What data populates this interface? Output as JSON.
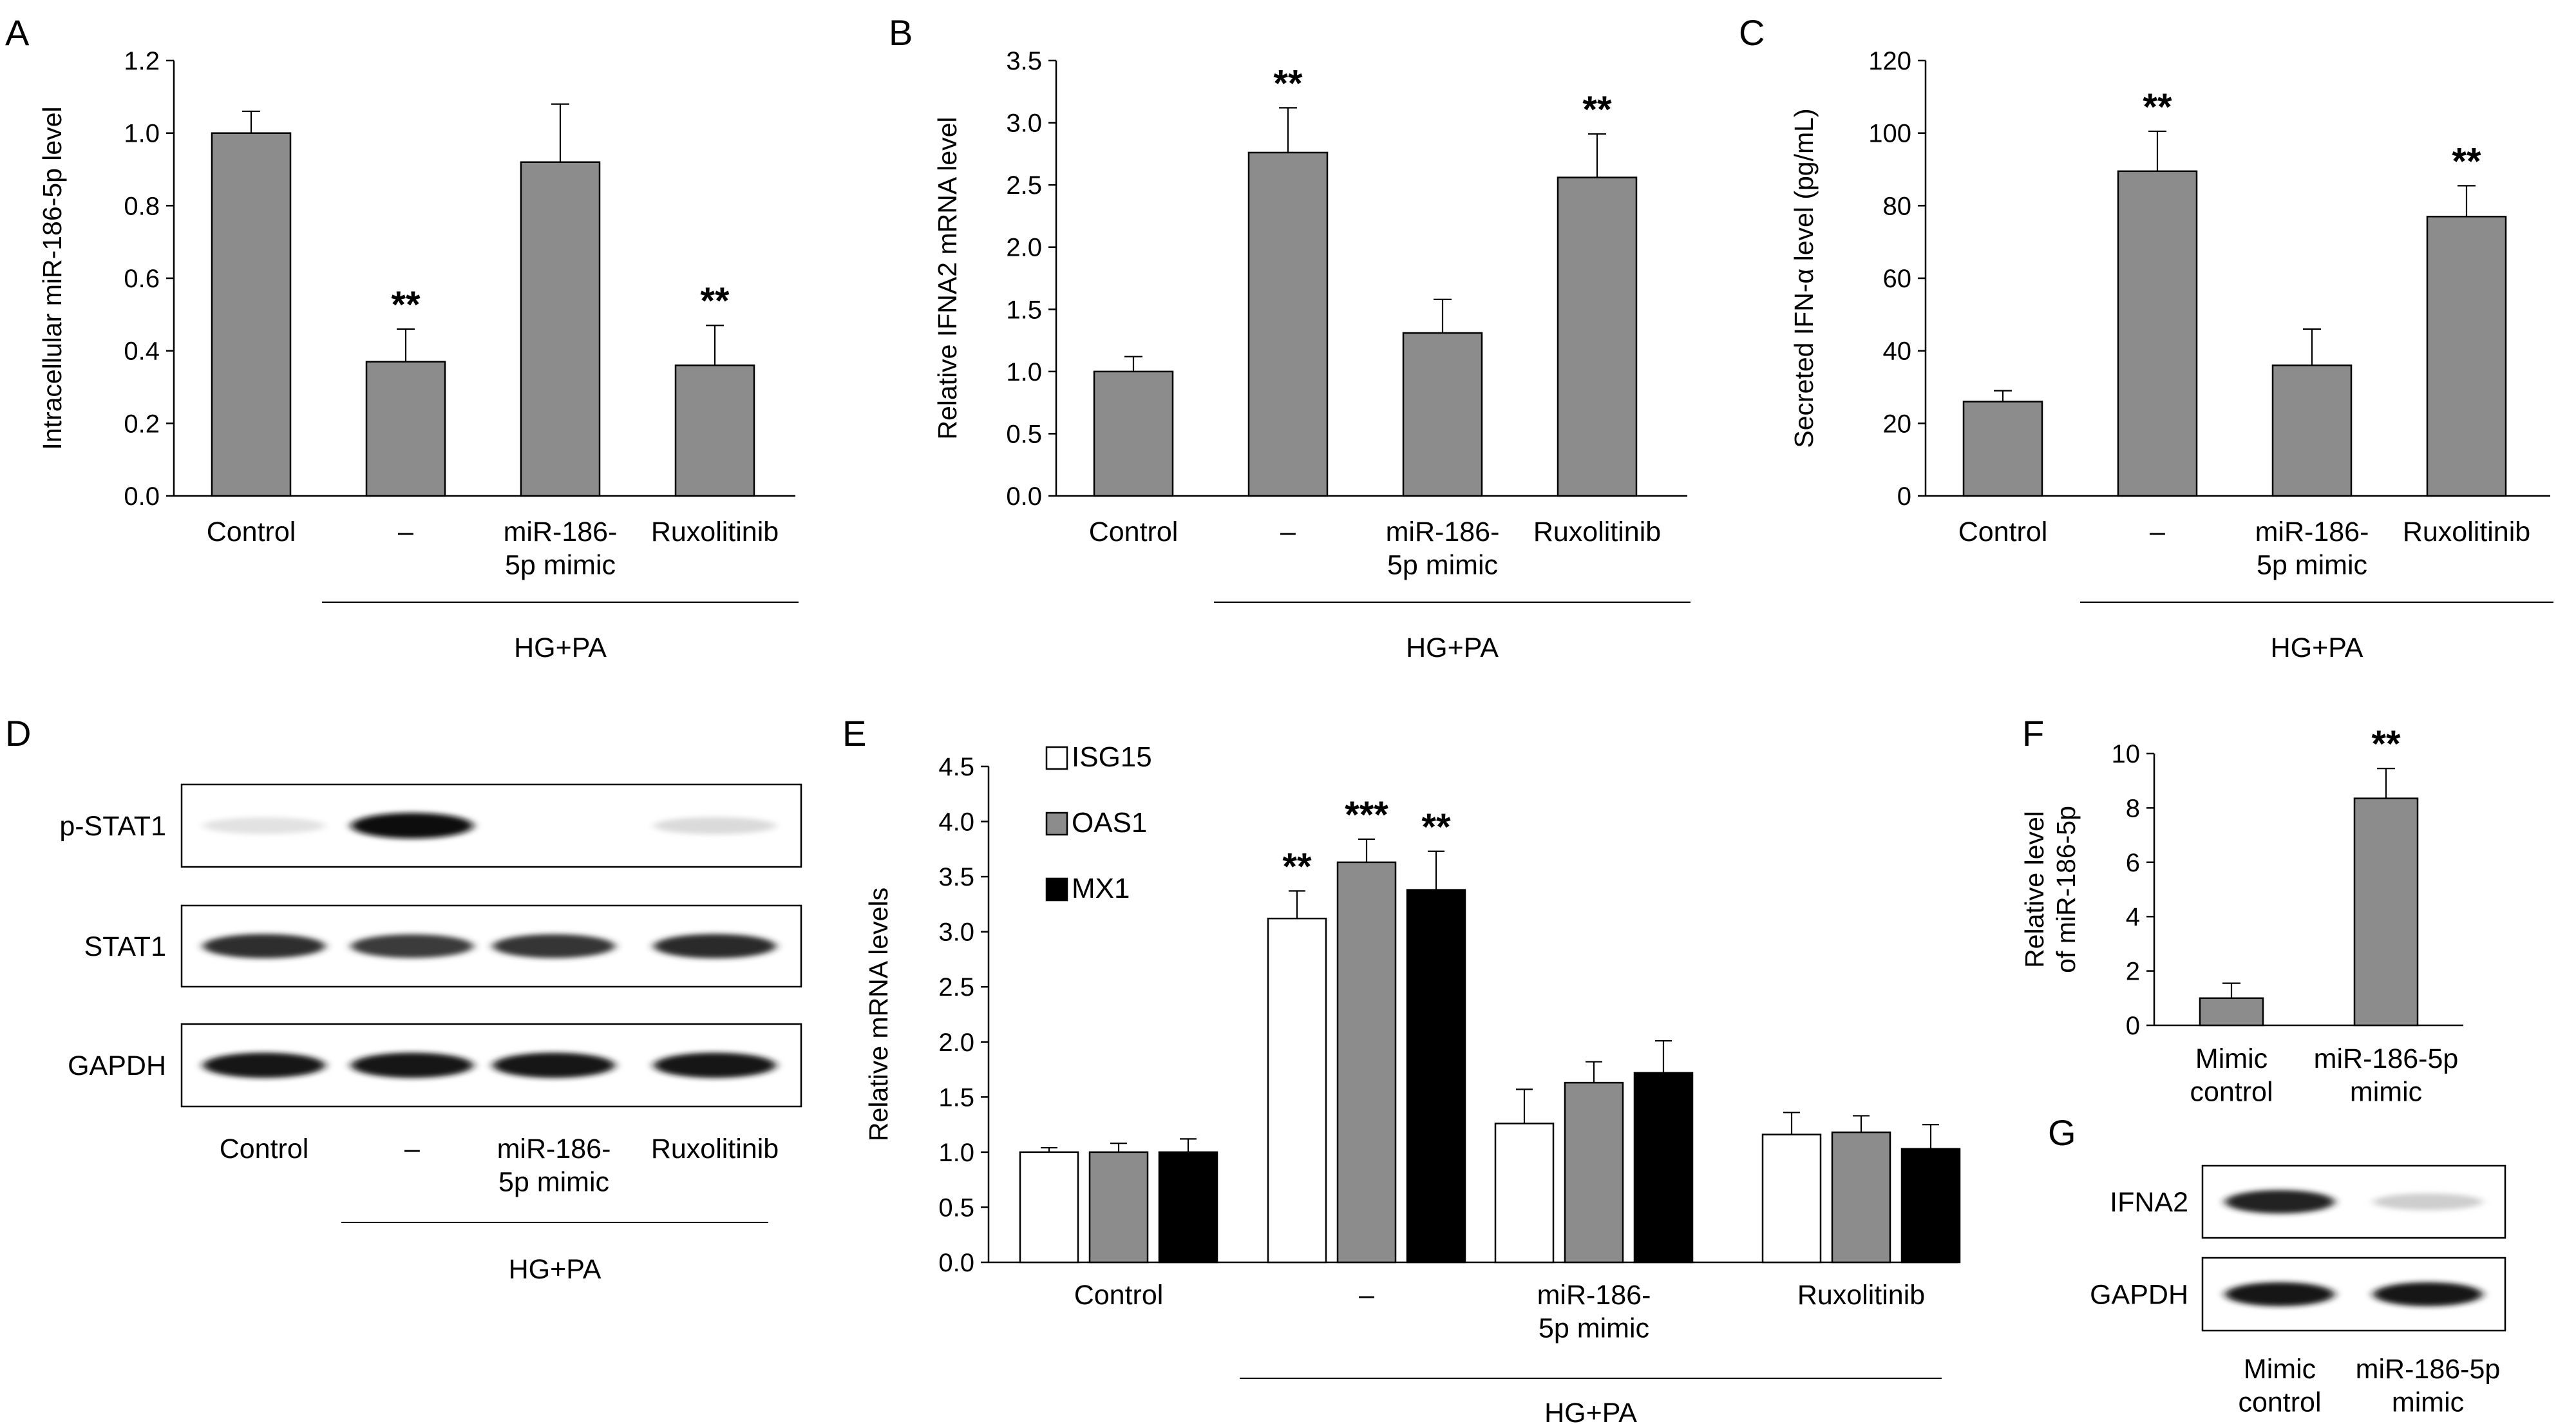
{
  "panels_letters": [
    "A",
    "B",
    "C",
    "D",
    "E",
    "F",
    "G"
  ],
  "chart_data": [
    {
      "panel": "A",
      "type": "bar",
      "ylabel": "Intracellular miR-186-5p level",
      "ylim": [
        0,
        1.2
      ],
      "yticks": [
        "0.0",
        "0.2",
        "0.4",
        "0.6",
        "0.8",
        "1.0",
        "1.2"
      ],
      "categories": [
        "Control",
        "–",
        "miR-186-\n5p mimic",
        "Ruxolitinib"
      ],
      "values": [
        1.0,
        0.37,
        0.92,
        0.36
      ],
      "errors": [
        0.06,
        0.09,
        0.16,
        0.11
      ],
      "significance": [
        "",
        "**",
        "",
        "**"
      ],
      "group_label": "HG+PA",
      "bar_color": "#8c8c8c"
    },
    {
      "panel": "B",
      "type": "bar",
      "ylabel": "Relative IFNA2  mRNA level",
      "ylim": [
        0,
        3.5
      ],
      "yticks": [
        "0.0",
        "0.5",
        "1.0",
        "1.5",
        "2.0",
        "2.5",
        "3.0",
        "3.5"
      ],
      "categories": [
        "Control",
        "–",
        "miR-186-\n5p mimic",
        "Ruxolitinib"
      ],
      "values": [
        1.0,
        2.76,
        1.31,
        2.56
      ],
      "errors": [
        0.12,
        0.36,
        0.27,
        0.35
      ],
      "significance": [
        "",
        "**",
        "",
        "**"
      ],
      "group_label": "HG+PA",
      "bar_color": "#8c8c8c"
    },
    {
      "panel": "C",
      "type": "bar",
      "ylabel": "Secreted IFN-α level (pg/mL)",
      "ylim": [
        0,
        120
      ],
      "yticks": [
        "0",
        "20",
        "40",
        "60",
        "80",
        "100",
        "120"
      ],
      "categories": [
        "Control",
        "–",
        "miR-186-\n5p mimic",
        "Ruxolitinib"
      ],
      "values": [
        26,
        89.5,
        36,
        77
      ],
      "errors": [
        3,
        11,
        10,
        8.5
      ],
      "significance": [
        "",
        "**",
        "",
        "**"
      ],
      "group_label": "HG+PA",
      "bar_color": "#8c8c8c"
    },
    {
      "panel": "E",
      "type": "bar",
      "ylabel": "Relative mRNA levels",
      "ylim": [
        0,
        4.5
      ],
      "yticks": [
        "0.0",
        "0.5",
        "1.0",
        "1.5",
        "2.0",
        "2.5",
        "3.0",
        "3.5",
        "4.0",
        "4.5"
      ],
      "categories": [
        "Control",
        "–",
        "miR-186-\n5p mimic",
        "Ruxolitinib"
      ],
      "series": [
        {
          "name": "ISG15",
          "color": "#ffffff",
          "values": [
            1.0,
            3.12,
            1.26,
            1.16
          ],
          "errors": [
            0.04,
            0.25,
            0.31,
            0.2
          ],
          "significance": [
            "",
            "**",
            "",
            ""
          ]
        },
        {
          "name": "OAS1",
          "color": "#8c8c8c",
          "values": [
            1.0,
            3.63,
            1.63,
            1.18
          ],
          "errors": [
            0.08,
            0.21,
            0.19,
            0.15
          ],
          "significance": [
            "",
            "***",
            "",
            ""
          ]
        },
        {
          "name": "MX1",
          "color": "#000000",
          "values": [
            1.0,
            3.38,
            1.72,
            1.03
          ],
          "errors": [
            0.12,
            0.35,
            0.29,
            0.22
          ],
          "significance": [
            "",
            "**",
            "",
            ""
          ]
        }
      ],
      "legend": "top-left",
      "group_label": "HG+PA"
    },
    {
      "panel": "F",
      "type": "bar",
      "ylabel": "Relative level\nof miR-186-5p",
      "ylim": [
        0,
        10
      ],
      "yticks": [
        "0",
        "2",
        "4",
        "6",
        "8",
        "10"
      ],
      "categories": [
        "Mimic\ncontrol",
        "miR-186-5p\nmimic"
      ],
      "values": [
        1.0,
        8.35
      ],
      "errors": [
        0.55,
        1.1
      ],
      "significance": [
        "",
        "**"
      ],
      "bar_color": "#8c8c8c"
    }
  ],
  "blots": {
    "D": {
      "rows": [
        {
          "label": "p-STAT1",
          "intensity": [
            0.12,
            1.0,
            0.0,
            0.15
          ]
        },
        {
          "label": "STAT1",
          "intensity": [
            0.85,
            0.8,
            0.82,
            0.86
          ]
        },
        {
          "label": "GAPDH",
          "intensity": [
            0.95,
            0.95,
            0.95,
            0.95
          ]
        }
      ],
      "categories": [
        "Control",
        "–",
        "miR-186-\n5p mimic",
        "Ruxolitinib"
      ],
      "group_label": "HG+PA"
    },
    "G": {
      "rows": [
        {
          "label": "IFNA2",
          "intensity": [
            0.9,
            0.2
          ]
        },
        {
          "label": "GAPDH",
          "intensity": [
            0.95,
            0.95
          ]
        }
      ],
      "categories": [
        "Mimic\ncontrol",
        "miR-186-5p\nmimic"
      ]
    }
  }
}
